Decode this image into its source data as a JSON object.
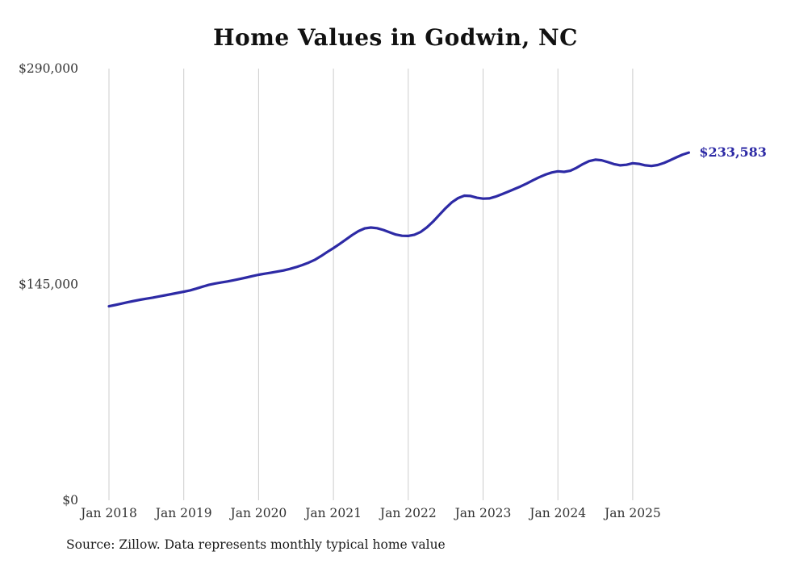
{
  "chart_data": {
    "type": "line",
    "title": "Home Values in Godwin, NC",
    "source": "Source: Zillow. Data represents monthly typical home value",
    "series_name": "Monthly typical home value",
    "x_start": "Jan 2018",
    "x_ticks": [
      "Jan 2018",
      "Jan 2019",
      "Jan 2020",
      "Jan 2021",
      "Jan 2022",
      "Jan 2023",
      "Jan 2024",
      "Jan 2025"
    ],
    "y_ticks": [
      {
        "value": 0,
        "label": "$0"
      },
      {
        "value": 145000,
        "label": "$145,000"
      },
      {
        "value": 290000,
        "label": "$290,000"
      }
    ],
    "ylim": [
      0,
      290000
    ],
    "grid": "vertical-only",
    "legend": "none",
    "end_label": "$233,583",
    "end_value": 233583,
    "line_color": "#2d2aa5",
    "grid_color": "#cccccc",
    "tick_label_color": "#333333",
    "values": [
      130300,
      131200,
      132100,
      133000,
      133900,
      134700,
      135400,
      136100,
      136900,
      137700,
      138500,
      139300,
      140100,
      141000,
      142200,
      143500,
      144700,
      145600,
      146300,
      147000,
      147800,
      148700,
      149600,
      150600,
      151500,
      152200,
      152900,
      153600,
      154400,
      155400,
      156600,
      158000,
      159600,
      161500,
      164000,
      166800,
      169400,
      172200,
      175200,
      178200,
      180800,
      182600,
      183200,
      182800,
      181600,
      180000,
      178500,
      177700,
      177600,
      178400,
      180300,
      183400,
      187300,
      191800,
      196300,
      200200,
      203000,
      204600,
      204400,
      203200,
      202600,
      202800,
      204000,
      205600,
      207300,
      209000,
      210800,
      212800,
      215000,
      217000,
      218800,
      220200,
      221000,
      220600,
      221400,
      223400,
      225800,
      227800,
      228800,
      228400,
      227200,
      225800,
      225000,
      225400,
      226400,
      226000,
      225000,
      224600,
      225200,
      226600,
      228400,
      230400,
      232200,
      233583
    ]
  }
}
